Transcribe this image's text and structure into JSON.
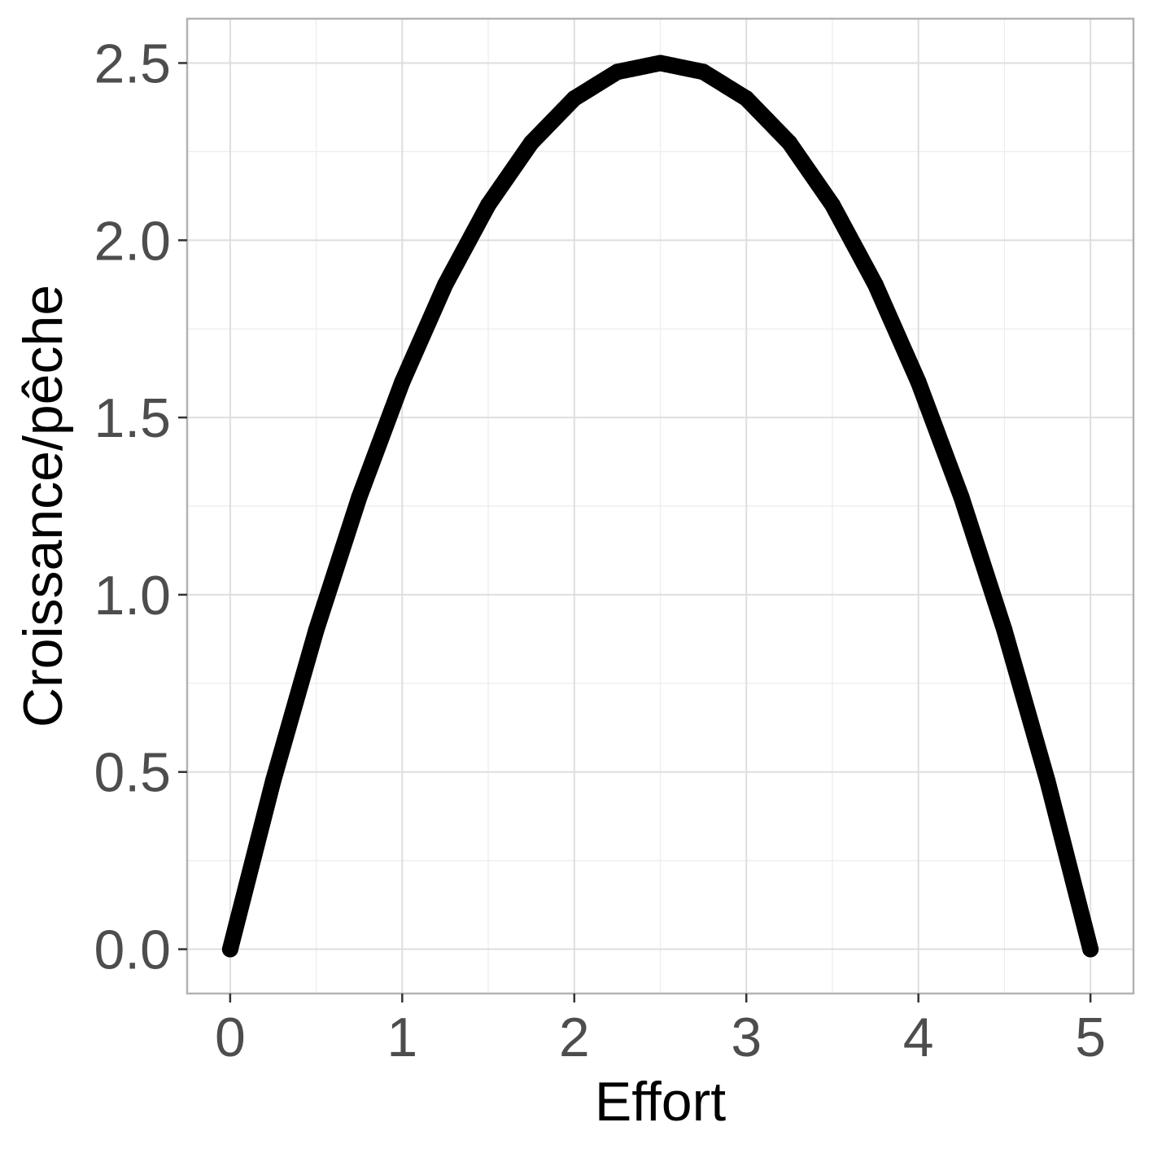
{
  "chart_data": {
    "type": "line",
    "title": "",
    "xlabel": "Effort",
    "ylabel": "Croissance/pêche",
    "xlim": [
      -0.25,
      5.25
    ],
    "ylim": [
      -0.125,
      2.625
    ],
    "x_ticks": [
      0,
      1,
      2,
      3,
      4,
      5
    ],
    "x_tick_labels": [
      "0",
      "1",
      "2",
      "3",
      "4",
      "5"
    ],
    "y_ticks": [
      0.0,
      0.5,
      1.0,
      1.5,
      2.0,
      2.5
    ],
    "y_tick_labels": [
      "0.0",
      "0.5",
      "1.0",
      "1.5",
      "2.0",
      "2.5"
    ],
    "grid": true,
    "legend": "none",
    "series": [
      {
        "color": "#000000",
        "x": [
          0,
          0.25,
          0.5,
          0.75,
          1,
          1.25,
          1.5,
          1.75,
          2,
          2.25,
          2.5,
          2.75,
          3,
          3.25,
          3.5,
          3.75,
          4,
          4.25,
          4.5,
          4.75,
          5
        ],
        "y": [
          0,
          0.475,
          0.9,
          1.275,
          1.6,
          1.875,
          2.1,
          2.275,
          2.4,
          2.475,
          2.5,
          2.475,
          2.4,
          2.275,
          2.1,
          1.875,
          1.6,
          1.275,
          0.9,
          0.475,
          0
        ]
      }
    ]
  },
  "colors": {
    "background": "#ffffff",
    "panel_border": "#b3b3b3",
    "grid_major": "#dedede",
    "grid_minor": "#ececec",
    "tick_text": "#4d4d4d",
    "axis_title": "#000000"
  }
}
